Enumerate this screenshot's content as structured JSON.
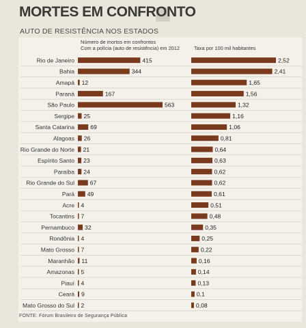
{
  "chart_data": {
    "type": "bar",
    "title": "MORTES EM CONFRONTO",
    "subtitle": "AUTO DE RESISTÊNCIA NOS ESTADOS",
    "source": "FONTE: Fórum Brasileiro de Segurança Pública",
    "categories": [
      "Rio de Janeiro",
      "Bahia",
      "Amapá",
      "Paraná",
      "São Paulo",
      "Sergipe",
      "Santa Catarina",
      "Alagoas",
      "Rio Grande do Norte",
      "Espírito Santo",
      "Paraíba",
      "Rio Grande do Sul",
      "Pará",
      "Acre",
      "Tocantins",
      "Pernambuco",
      "Rondônia",
      "Mato Grosso",
      "Maranhão",
      "Amazonas",
      "Piauí",
      "Ceará",
      "Mato Grosso do Sul"
    ],
    "series": [
      {
        "name": "Número de mortos em confrontos Com a polícia (auto de resistência) em 2012",
        "name_lines": [
          "Número de mortos em confrontos",
          "Com a polícia (auto de resistência) em 2012"
        ],
        "values": [
          415,
          344,
          12,
          167,
          563,
          25,
          69,
          26,
          21,
          23,
          24,
          67,
          49,
          4,
          7,
          32,
          4,
          7,
          11,
          5,
          4,
          9,
          2
        ],
        "labels": [
          "415",
          "344",
          "12",
          "167",
          "563",
          "25",
          "69",
          "26",
          "21",
          "23",
          "24",
          "67",
          "49",
          "4",
          "7",
          "32",
          "4",
          "7",
          "11",
          "5",
          "4",
          "9",
          "2"
        ]
      },
      {
        "name": "Taxa por 100 mil habitantes",
        "name_lines": [
          "Taxa por 100 mil habitantes"
        ],
        "values": [
          2.52,
          2.41,
          1.65,
          1.56,
          1.32,
          1.16,
          1.06,
          0.81,
          0.64,
          0.63,
          0.62,
          0.62,
          0.61,
          0.51,
          0.48,
          0.35,
          0.25,
          0.22,
          0.16,
          0.14,
          0.13,
          0.1,
          0.08
        ],
        "labels": [
          "2,52",
          "2,41",
          "1,65",
          "1,56",
          "1,32",
          "1,16",
          "1,06",
          "0,81",
          "0,64",
          "0,63",
          "0,62",
          "0,62",
          "0,61",
          "0,51",
          "0,48",
          "0,35",
          "0,25",
          "0,22",
          "0,16",
          "0,14",
          "0,13",
          "0,1",
          "0,08"
        ]
      }
    ],
    "xlim_deaths": [
      0,
      563
    ],
    "xlim_rate": [
      0,
      2.52
    ],
    "colors": {
      "bar": "#7a3a1e",
      "row_line": "#cfccc3",
      "panel": "#f3f1ea"
    }
  }
}
